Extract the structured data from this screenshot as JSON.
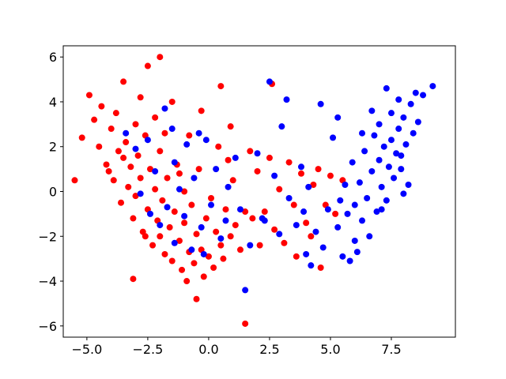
{
  "chart_data": {
    "type": "scatter",
    "xlim": [
      -5.97,
      10.13
    ],
    "ylim": [
      -6.5,
      6.5
    ],
    "xticks": [
      {
        "value": -5,
        "label": "−5.0"
      },
      {
        "value": -2.5,
        "label": "−2.5"
      },
      {
        "value": 0,
        "label": "0.0"
      },
      2.5,
      {
        "value": 5,
        "label": "5.0"
      },
      7.5
    ],
    "yticks": [
      {
        "value": -6,
        "label": "−6"
      },
      {
        "value": -4,
        "label": "−4"
      },
      {
        "value": -2,
        "label": "−2"
      },
      0,
      2,
      4,
      6
    ],
    "series": [
      {
        "color": "#ff0000",
        "x": [
          -5.5,
          -5.2,
          -4.9,
          -4.7,
          -4.5,
          -4.4,
          -4.2,
          -4.0,
          -3.9,
          -3.8,
          -3.7,
          -3.6,
          -3.5,
          -3.4,
          -3.3,
          -3.2,
          -3.1,
          -3.0,
          -3.0,
          -2.9,
          -2.8,
          -2.8,
          -2.7,
          -2.6,
          -2.5,
          -2.5,
          -2.4,
          -2.3,
          -2.2,
          -2.2,
          -2.1,
          -2.0,
          -2.0,
          -1.9,
          -1.8,
          -1.8,
          -1.7,
          -1.6,
          -1.5,
          -1.5,
          -1.4,
          -1.3,
          -1.2,
          -1.1,
          -1.0,
          -1.0,
          -0.9,
          -0.8,
          -0.8,
          -0.7,
          -0.6,
          -0.5,
          -0.5,
          -0.4,
          -0.3,
          -0.2,
          -0.1,
          0.0,
          0.1,
          0.2,
          0.3,
          0.4,
          0.5,
          0.5,
          0.6,
          0.7,
          0.8,
          0.9,
          1.0,
          1.1,
          1.3,
          1.5,
          1.5,
          1.7,
          1.8,
          2.0,
          2.1,
          2.3,
          2.5,
          2.6,
          2.7,
          2.9,
          3.1,
          3.3,
          3.5,
          3.6,
          3.8,
          4.0,
          4.2,
          4.3,
          4.5,
          4.6,
          4.8,
          5.0,
          5.2,
          5.5,
          -3.1,
          -2.6,
          -3.5,
          -4.1,
          -2.0,
          -1.2,
          0.9,
          -0.3
        ],
        "values": [
          0.5,
          2.4,
          4.3,
          3.2,
          2.0,
          3.8,
          1.2,
          2.8,
          0.5,
          3.5,
          1.8,
          -0.5,
          4.9,
          2.2,
          0.2,
          1.1,
          -1.2,
          3.0,
          -0.2,
          1.6,
          4.2,
          0.6,
          -1.8,
          2.5,
          5.6,
          -0.8,
          1.0,
          -2.4,
          3.3,
          0.1,
          -1.3,
          6.0,
          1.8,
          -0.4,
          -2.8,
          2.6,
          0.6,
          -1.6,
          -3.1,
          4.0,
          -0.9,
          1.2,
          -2.2,
          -3.5,
          0.0,
          -1.4,
          -4.0,
          2.5,
          -2.7,
          -0.6,
          -3.2,
          -4.8,
          -1.9,
          1.0,
          -2.6,
          -3.8,
          -1.2,
          -2.9,
          -0.3,
          -3.4,
          -1.8,
          2.0,
          4.7,
          -2.4,
          -3.0,
          -0.8,
          1.4,
          -2.0,
          0.5,
          -1.5,
          -2.6,
          -5.9,
          -0.9,
          1.8,
          -1.2,
          0.9,
          -2.4,
          -0.9,
          1.5,
          4.8,
          -1.7,
          0.1,
          -2.3,
          1.3,
          -0.6,
          -2.9,
          0.8,
          -1.4,
          -2.0,
          0.3,
          1.0,
          -3.4,
          -0.6,
          0.7,
          -1.0,
          0.5,
          -3.9,
          -2.0,
          1.5,
          0.9,
          -2.0,
          0.8,
          2.9,
          3.6
        ]
      },
      {
        "color": "#0000ff",
        "x": [
          -3.4,
          -3.0,
          -2.8,
          -2.5,
          -2.2,
          -2.0,
          -1.8,
          -1.7,
          -1.5,
          -1.4,
          -1.2,
          -1.0,
          -0.9,
          -0.7,
          -0.6,
          -0.4,
          -0.3,
          -0.1,
          0.1,
          0.3,
          0.5,
          0.8,
          1.1,
          1.3,
          1.5,
          1.7,
          2.0,
          2.2,
          2.5,
          2.7,
          2.9,
          3.0,
          3.2,
          3.3,
          3.6,
          3.8,
          4.0,
          4.1,
          4.4,
          4.6,
          4.7,
          4.9,
          5.1,
          5.3,
          5.3,
          5.5,
          5.6,
          5.7,
          5.9,
          6.0,
          6.0,
          6.2,
          6.3,
          6.4,
          6.5,
          6.6,
          6.7,
          6.8,
          6.9,
          7.0,
          7.0,
          7.1,
          7.2,
          7.3,
          7.4,
          7.5,
          7.5,
          7.6,
          7.7,
          7.8,
          7.8,
          7.9,
          8.0,
          8.1,
          8.2,
          8.3,
          8.4,
          8.5,
          8.6,
          8.8,
          9.2,
          7.3,
          6.3,
          5.8,
          4.2,
          6.7,
          7.9,
          8.0,
          7.1,
          6.1,
          5.4,
          2.3,
          3.9,
          -2.4,
          -1.4,
          -0.2,
          0.7
        ],
        "values": [
          2.6,
          1.9,
          -0.1,
          2.3,
          0.9,
          -1.5,
          3.7,
          -0.7,
          2.8,
          -2.3,
          0.1,
          -1.1,
          2.1,
          -2.6,
          0.6,
          2.6,
          -1.6,
          2.3,
          -0.6,
          1.0,
          -2.1,
          0.2,
          1.5,
          -0.8,
          -4.4,
          -2.4,
          1.7,
          -1.2,
          4.9,
          0.7,
          -1.9,
          2.9,
          4.1,
          -0.3,
          -1.5,
          1.1,
          -2.8,
          0.2,
          -1.8,
          3.9,
          -2.5,
          -0.8,
          2.4,
          3.3,
          -1.6,
          -2.9,
          0.3,
          -1.0,
          1.3,
          -2.2,
          -0.6,
          0.4,
          -1.3,
          1.8,
          -0.3,
          -2.0,
          0.9,
          2.5,
          -0.9,
          1.4,
          3.0,
          0.2,
          2.0,
          -0.4,
          1.1,
          3.5,
          2.3,
          0.6,
          1.7,
          4.1,
          2.8,
          1.0,
          3.3,
          2.1,
          0.3,
          3.9,
          2.6,
          4.4,
          3.1,
          4.3,
          4.7,
          4.6,
          2.6,
          -3.1,
          -3.3,
          3.6,
          1.6,
          -0.1,
          -0.8,
          -2.7,
          -0.4,
          -1.3,
          -0.9,
          -1.0,
          1.3,
          -2.8,
          -1.3
        ]
      }
    ]
  }
}
